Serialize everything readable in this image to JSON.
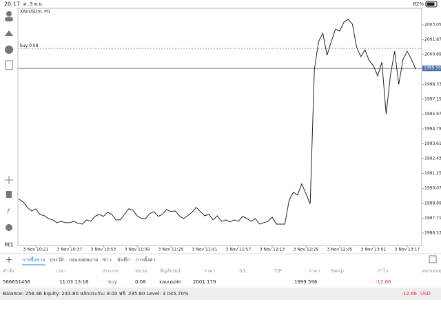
{
  "status_bar": {
    "time": "20:17",
    "date": "ศ. 3 พ.ย.",
    "battery": "82%"
  },
  "timeframe": "M1",
  "chart": {
    "type": "line",
    "title": "XAUUSDm, M1",
    "color": "#222222",
    "categories": [
      null,
      null,
      null,
      null,
      "3 Nov 10:21",
      null,
      null,
      null,
      null,
      null,
      null,
      null,
      "3 Nov 10:37",
      null,
      null,
      null,
      null,
      null,
      null,
      null,
      "3 Nov 10:53",
      null,
      null,
      null,
      null,
      null,
      null,
      null,
      "3 Nov 11:09",
      null,
      null,
      null,
      null,
      null,
      null,
      null,
      "3 Nov 11:25",
      null,
      null,
      null,
      null,
      null,
      null,
      null,
      "3 Nov 11:41",
      null,
      null,
      null,
      null,
      null,
      null,
      null,
      "3 Nov 11:57",
      null,
      null,
      null,
      null,
      null,
      null,
      null,
      "3 Nov 12:13",
      null,
      null,
      null,
      null,
      null,
      null,
      null,
      "3 Nov 12:29",
      null,
      null,
      null,
      null,
      null,
      null,
      null,
      "3 Nov 12:45",
      null,
      null,
      null,
      null,
      null,
      null,
      null,
      "3 Nov 13:01",
      null,
      null,
      null,
      null,
      null,
      null,
      null,
      "3 Nov 13:17",
      null,
      null
    ],
    "values": [
      1989.22,
      1989.0,
      1988.56,
      1988.29,
      1988.45,
      1988.01,
      1987.9,
      1987.68,
      1987.57,
      1987.35,
      1987.46,
      1987.35,
      1987.35,
      1987.46,
      1987.3,
      1987.24,
      1987.57,
      1987.46,
      1987.85,
      1988.01,
      1987.85,
      1988.18,
      1988.01,
      1987.57,
      1987.57,
      1988.01,
      1988.45,
      1988.34,
      1987.9,
      1987.68,
      1987.68,
      1988.07,
      1988.23,
      1987.85,
      1988.01,
      1988.4,
      1988.23,
      1988.29,
      1987.9,
      1987.68,
      1987.9,
      1988.18,
      1988.56,
      1988.23,
      1987.9,
      1988.01,
      1987.57,
      1987.9,
      1987.46,
      1987.57,
      1987.41,
      1987.57,
      1987.46,
      1987.85,
      1987.68,
      1987.46,
      1987.68,
      1987.24,
      1987.35,
      1987.46,
      1987.79,
      1987.24,
      1987.24,
      1987.24,
      1989.11,
      1989.77,
      1989.55,
      1990.43,
      1989.66,
      1988.84,
      1999.54,
      2001.73,
      2002.39,
      2000.64,
      2001.73,
      2002.72,
      2002.56,
      2003.27,
      2003.49,
      2003.11,
      2001.29,
      2000.53,
      2001.07,
      2000.2,
      1999.81,
      1998.99,
      2000.09,
      1995.97,
      1998.99,
      2000.96,
      1998.33,
      2000.31,
      2000.96,
      2000.31,
      1999.54
    ],
    "ylim": [
      1985.54,
      2004.37
    ],
    "yticks": [
      {
        "value": 2003.05,
        "label": "2003.050"
      },
      {
        "value": 2001.87,
        "label": "2001.870"
      },
      {
        "value": 2000.69,
        "label": "2000.690"
      },
      {
        "value": 1998.33,
        "label": "1998.330"
      },
      {
        "value": 1997.15,
        "label": "1997.150"
      },
      {
        "value": 1995.97,
        "label": "1995.970"
      },
      {
        "value": 1994.79,
        "label": "1994.790"
      },
      {
        "value": 1993.61,
        "label": "1993.610"
      },
      {
        "value": 1992.43,
        "label": "1992.430"
      },
      {
        "value": 1991.25,
        "label": "1991.250"
      },
      {
        "value": 1990.07,
        "label": "1990.070"
      },
      {
        "value": 1988.89,
        "label": "1988.890"
      },
      {
        "value": 1987.71,
        "label": "1987.710"
      },
      {
        "value": 1986.53,
        "label": "1986.530"
      }
    ],
    "price_line": 1999.596,
    "order_line": {
      "label": "buy 0.08",
      "value": 2001.179
    }
  },
  "tabs": [
    "การซื้อขาย",
    "ประวัติ",
    "กล่องจดหมาย",
    "ข่าว",
    "บันทึก",
    "การตั้งค่า"
  ],
  "active_tab": 0,
  "table": {
    "columns": [
      "คำสั่ง",
      "เวลา",
      "ประเภท",
      "ขนาด",
      "สัญลักษณ์",
      "ราคา",
      "S/L",
      "T/P",
      "ราคา",
      "Swap",
      "กำไร",
      "หมายเหตุ"
    ],
    "rows": [
      {
        "0": "566651456",
        "1": "11.03 13:16",
        "2": "buy",
        "3": "0.08",
        "4": "xauusdm",
        "5": "2001.179",
        "8": "1999.596",
        "10": "-12.66"
      }
    ]
  },
  "footer": {
    "summary": "Balance: 256.46 Equity: 243.80 หลักประกัน: 8.00 ฟรี: 235.80 Level: 3 045.70%",
    "profit": "-12.66",
    "currency": "USD"
  }
}
